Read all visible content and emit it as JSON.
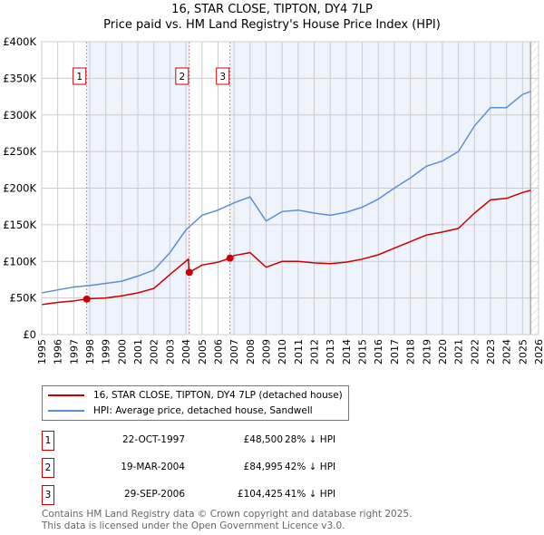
{
  "chart_data": {
    "type": "line",
    "title": "16, STAR CLOSE, TIPTON, DY4 7LP",
    "subtitle": "Price paid vs. HM Land Registry's House Price Index (HPI)",
    "xlim": [
      1995,
      2026
    ],
    "ylim": [
      0,
      400000
    ],
    "x_ticks": [
      "1995",
      "1996",
      "1997",
      "1998",
      "1999",
      "2000",
      "2001",
      "2002",
      "2003",
      "2004",
      "2005",
      "2006",
      "2007",
      "2008",
      "2009",
      "2010",
      "2011",
      "2012",
      "2013",
      "2014",
      "2015",
      "2016",
      "2017",
      "2018",
      "2019",
      "2020",
      "2021",
      "2022",
      "2023",
      "2024",
      "2025",
      "2026"
    ],
    "y_ticks": [
      {
        "v": 0,
        "l": "£0"
      },
      {
        "v": 50000,
        "l": "£50K"
      },
      {
        "v": 100000,
        "l": "£100K"
      },
      {
        "v": 150000,
        "l": "£150K"
      },
      {
        "v": 200000,
        "l": "£200K"
      },
      {
        "v": 250000,
        "l": "£250K"
      },
      {
        "v": 300000,
        "l": "£300K"
      },
      {
        "v": 350000,
        "l": "£350K"
      },
      {
        "v": 400000,
        "l": "£400K"
      }
    ],
    "grid": true,
    "series": [
      {
        "name": "16, STAR CLOSE, TIPTON, DY4 7LP (detached house)",
        "color": "#cc0000",
        "x": [
          1995,
          1996,
          1997,
          1997.8,
          1998,
          1999,
          2000,
          2001,
          2002,
          2003,
          2004.15,
          2004.2,
          2005,
          2006,
          2006.75,
          2007,
          2008,
          2009,
          2010,
          2011,
          2012,
          2013,
          2014,
          2015,
          2016,
          2017,
          2018,
          2019,
          2020,
          2021,
          2022,
          2023,
          2024,
          2025,
          2025.5
        ],
        "y": [
          41000,
          44000,
          46000,
          48500,
          49000,
          50000,
          53000,
          57000,
          63000,
          82000,
          103000,
          84995,
          95000,
          99000,
          104425,
          108000,
          112000,
          92000,
          100000,
          100000,
          98000,
          97000,
          99000,
          103000,
          109000,
          118000,
          127000,
          136000,
          140000,
          145000,
          166000,
          184000,
          186000,
          194000,
          197000
        ]
      },
      {
        "name": "HPI: Average price, detached house, Sandwell",
        "color": "#5b8fd4",
        "x": [
          1995,
          1996,
          1997,
          1998,
          1999,
          2000,
          2001,
          2002,
          2003,
          2004,
          2005,
          2006,
          2007,
          2008,
          2009,
          2010,
          2011,
          2012,
          2013,
          2014,
          2015,
          2016,
          2017,
          2018,
          2019,
          2020,
          2021,
          2022,
          2023,
          2024,
          2025,
          2025.5
        ],
        "y": [
          57000,
          61000,
          65000,
          67000,
          70000,
          73000,
          80000,
          88000,
          112000,
          143000,
          163000,
          170000,
          180000,
          188000,
          155000,
          168000,
          170000,
          166000,
          163000,
          167000,
          174000,
          185000,
          200000,
          214000,
          230000,
          237000,
          250000,
          285000,
          310000,
          310000,
          328000,
          332000
        ]
      }
    ],
    "sales": [
      {
        "id": "1",
        "x": 1997.81,
        "y": 48500,
        "date": "22-OCT-1997",
        "price": "£48,500",
        "hpi": "28% ↓ HPI"
      },
      {
        "id": "2",
        "x": 2004.21,
        "y": 84995,
        "date": "19-MAR-2004",
        "price": "£84,995",
        "hpi": "42% ↓ HPI"
      },
      {
        "id": "3",
        "x": 2006.75,
        "y": 104425,
        "date": "29-SEP-2006",
        "price": "£104,425",
        "hpi": "41% ↓ HPI"
      }
    ],
    "legend_position": "below"
  },
  "footer": {
    "line1": "Contains HM Land Registry data © Crown copyright and database right 2025.",
    "line2": "This data is licensed under the Open Government Licence v3.0."
  }
}
